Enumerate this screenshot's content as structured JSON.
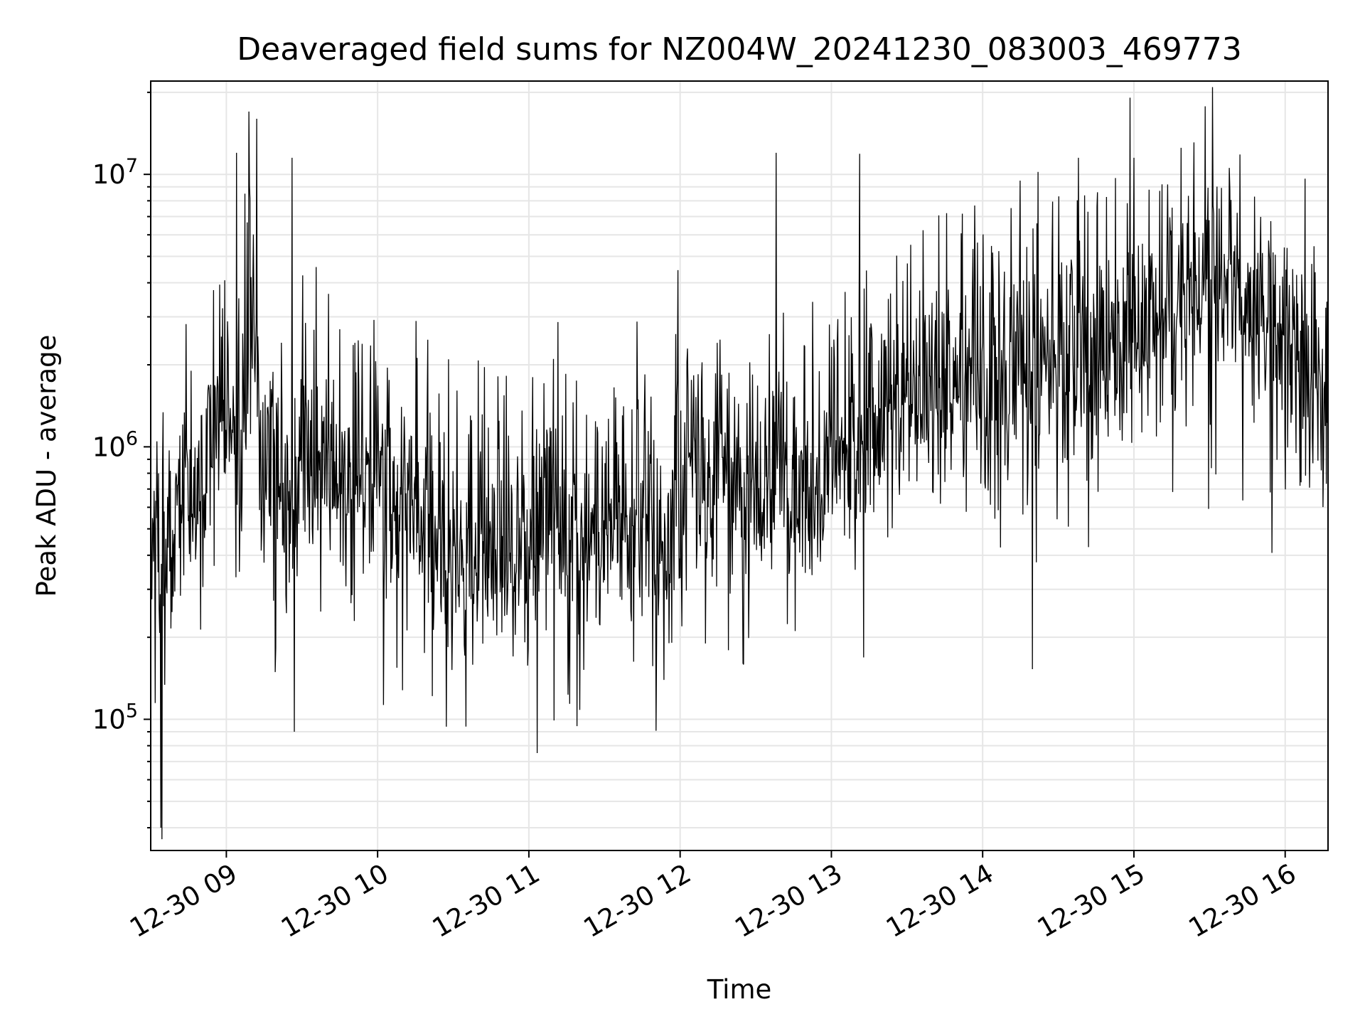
{
  "chart_data": {
    "type": "line",
    "title": "Deaveraged field sums for NZ004W_20241230_083003_469773",
    "xlabel": "Time",
    "ylabel": "Peak ADU - average",
    "yscale": "log",
    "grid": true,
    "line_color": "#000000",
    "grid_color": "#e6e6e6",
    "xlim": [
      "2024-12-30 08:30",
      "2024-12-30 16:17"
    ],
    "ylim": [
      33000,
      22000000
    ],
    "x_ticks": [
      {
        "value": "2024-12-30 09:00",
        "label": "12-30 09"
      },
      {
        "value": "2024-12-30 10:00",
        "label": "12-30 10"
      },
      {
        "value": "2024-12-30 11:00",
        "label": "12-30 11"
      },
      {
        "value": "2024-12-30 12:00",
        "label": "12-30 12"
      },
      {
        "value": "2024-12-30 13:00",
        "label": "12-30 13"
      },
      {
        "value": "2024-12-30 14:00",
        "label": "12-30 14"
      },
      {
        "value": "2024-12-30 15:00",
        "label": "12-30 15"
      },
      {
        "value": "2024-12-30 16:00",
        "label": "12-30 16"
      }
    ],
    "y_ticks": [
      {
        "value": 100000,
        "base": "10",
        "exp": "5"
      },
      {
        "value": 1000000,
        "base": "10",
        "exp": "6"
      },
      {
        "value": 10000000,
        "base": "10",
        "exp": "7"
      }
    ],
    "series": [
      {
        "x": [
          "2024-12-30 08:30",
          "2024-12-30 08:35",
          "2024-12-30 08:40",
          "2024-12-30 08:45",
          "2024-12-30 08:50",
          "2024-12-30 08:55",
          "2024-12-30 09:00",
          "2024-12-30 09:05",
          "2024-12-30 09:10",
          "2024-12-30 09:15",
          "2024-12-30 09:20",
          "2024-12-30 09:25",
          "2024-12-30 09:30",
          "2024-12-30 09:35",
          "2024-12-30 09:40",
          "2024-12-30 09:45",
          "2024-12-30 09:50",
          "2024-12-30 09:55",
          "2024-12-30 10:00",
          "2024-12-30 10:05",
          "2024-12-30 10:10",
          "2024-12-30 10:15",
          "2024-12-30 10:20",
          "2024-12-30 10:25",
          "2024-12-30 10:30",
          "2024-12-30 10:35",
          "2024-12-30 10:40",
          "2024-12-30 10:45",
          "2024-12-30 10:50",
          "2024-12-30 10:55",
          "2024-12-30 11:00",
          "2024-12-30 11:05",
          "2024-12-30 11:10",
          "2024-12-30 11:15",
          "2024-12-30 11:20",
          "2024-12-30 11:25",
          "2024-12-30 11:30",
          "2024-12-30 11:35",
          "2024-12-30 11:40",
          "2024-12-30 11:45",
          "2024-12-30 11:50",
          "2024-12-30 11:55",
          "2024-12-30 12:00",
          "2024-12-30 12:05",
          "2024-12-30 12:10",
          "2024-12-30 12:15",
          "2024-12-30 12:20",
          "2024-12-30 12:25",
          "2024-12-30 12:30",
          "2024-12-30 12:35",
          "2024-12-30 12:40",
          "2024-12-30 12:45",
          "2024-12-30 12:50",
          "2024-12-30 12:55",
          "2024-12-30 13:00",
          "2024-12-30 13:05",
          "2024-12-30 13:10",
          "2024-12-30 13:15",
          "2024-12-30 13:20",
          "2024-12-30 13:25",
          "2024-12-30 13:30",
          "2024-12-30 13:35",
          "2024-12-30 13:40",
          "2024-12-30 13:45",
          "2024-12-30 13:50",
          "2024-12-30 13:55",
          "2024-12-30 14:00",
          "2024-12-30 14:05",
          "2024-12-30 14:10",
          "2024-12-30 14:15",
          "2024-12-30 14:20",
          "2024-12-30 14:25",
          "2024-12-30 14:30",
          "2024-12-30 14:35",
          "2024-12-30 14:40",
          "2024-12-30 14:45",
          "2024-12-30 14:50",
          "2024-12-30 14:55",
          "2024-12-30 15:00",
          "2024-12-30 15:05",
          "2024-12-30 15:10",
          "2024-12-30 15:15",
          "2024-12-30 15:20",
          "2024-12-30 15:25",
          "2024-12-30 15:30",
          "2024-12-30 15:35",
          "2024-12-30 15:40",
          "2024-12-30 15:45",
          "2024-12-30 15:50",
          "2024-12-30 15:55",
          "2024-12-30 16:00",
          "2024-12-30 16:05",
          "2024-12-30 16:10",
          "2024-12-30 16:15"
        ],
        "y": [
          500000,
          350000,
          420000,
          600000,
          650000,
          900000,
          1200000,
          800000,
          3000000,
          700000,
          900000,
          500000,
          1100000,
          600000,
          800000,
          700000,
          650000,
          750000,
          900000,
          650000,
          600000,
          500000,
          480000,
          450000,
          500000,
          300000,
          350000,
          420000,
          450000,
          400000,
          420000,
          500000,
          450000,
          480000,
          450000,
          430000,
          420000,
          450000,
          450000,
          500000,
          480000,
          450000,
          600000,
          700000,
          650000,
          750000,
          700000,
          650000,
          650000,
          700000,
          800000,
          700000,
          720000,
          650000,
          850000,
          900000,
          1000000,
          950000,
          1200000,
          1300000,
          1500000,
          1600000,
          1400000,
          1800000,
          1700000,
          1600000,
          1500000,
          1400000,
          1700000,
          1900000,
          2000000,
          2100000,
          2300000,
          2000000,
          2200000,
          2400000,
          2300000,
          2300000,
          2500000,
          2600000,
          2800000,
          3000000,
          3200000,
          3400000,
          3800000,
          4000000,
          3800000,
          3200000,
          3000000,
          2800000,
          2400000,
          2000000,
          1700000,
          1400000
        ]
      }
    ],
    "annotations": [
      {
        "x": "2024-12-30 09:09",
        "y": 17000000
      },
      {
        "x": "2024-12-30 09:12",
        "y": 16000000
      },
      {
        "x": "2024-12-30 09:04",
        "y": 12000000
      },
      {
        "x": "2024-12-30 09:26",
        "y": 11500000
      },
      {
        "x": "2024-12-30 12:38",
        "y": 12000000
      },
      {
        "x": "2024-12-30 15:00",
        "y": 11500000
      },
      {
        "x": "2024-12-30 14:38",
        "y": 11500000
      },
      {
        "x": "2024-12-30 08:34",
        "y": 40000
      },
      {
        "x": "2024-12-30 09:27",
        "y": 90000
      }
    ]
  }
}
